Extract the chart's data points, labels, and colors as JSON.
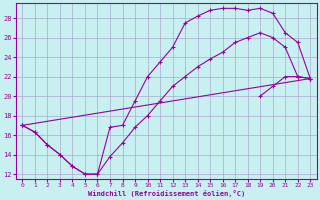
{
  "xlabel": "Windchill (Refroidissement éolien,°C)",
  "background_color": "#c8f0f0",
  "grid_color": "#aaaacc",
  "line_color": "#990099",
  "xlim": [
    -0.5,
    23.5
  ],
  "ylim": [
    11.5,
    29.5
  ],
  "xticks": [
    0,
    1,
    2,
    3,
    4,
    5,
    6,
    7,
    8,
    9,
    10,
    11,
    12,
    13,
    14,
    15,
    16,
    17,
    18,
    19,
    20,
    21,
    22,
    23
  ],
  "yticks": [
    12,
    14,
    16,
    18,
    20,
    22,
    24,
    26,
    28
  ],
  "line1_x": [
    0,
    1,
    2,
    3,
    4,
    5,
    6,
    7,
    8,
    9,
    10,
    11,
    12,
    13,
    14,
    15,
    16,
    17,
    18,
    19,
    20,
    21,
    22,
    23
  ],
  "line1_y": [
    17.0,
    16.3,
    15.0,
    14.0,
    12.8,
    12.0,
    12.0,
    16.8,
    17.0,
    19.5,
    22.0,
    23.5,
    25.0,
    27.5,
    28.2,
    28.8,
    29.0,
    29.0,
    28.8,
    29.0,
    28.5,
    26.5,
    25.5,
    21.8
  ],
  "line2_x": [
    0,
    1,
    2,
    3,
    4,
    5,
    6,
    7,
    8,
    9,
    10,
    11,
    12,
    13,
    14,
    15,
    16,
    17,
    18,
    19,
    20,
    21,
    22,
    23
  ],
  "line2_y": [
    17.0,
    16.3,
    15.0,
    14.0,
    12.8,
    12.0,
    12.0,
    13.8,
    15.2,
    16.8,
    18.0,
    19.5,
    21.0,
    22.0,
    23.0,
    23.8,
    24.5,
    25.5,
    26.0,
    26.5,
    26.0,
    25.0,
    22.0,
    21.8
  ],
  "line3_x": [
    0,
    1,
    2,
    3,
    4,
    5,
    6,
    7,
    8,
    9,
    10,
    11,
    12,
    13,
    14,
    15,
    16,
    17,
    18,
    19,
    20,
    21,
    22,
    23
  ],
  "line3_y": [
    17.0,
    null,
    null,
    null,
    null,
    null,
    null,
    null,
    null,
    null,
    null,
    null,
    null,
    null,
    null,
    null,
    null,
    null,
    null,
    20.0,
    21.0,
    22.0,
    22.0,
    21.8
  ]
}
